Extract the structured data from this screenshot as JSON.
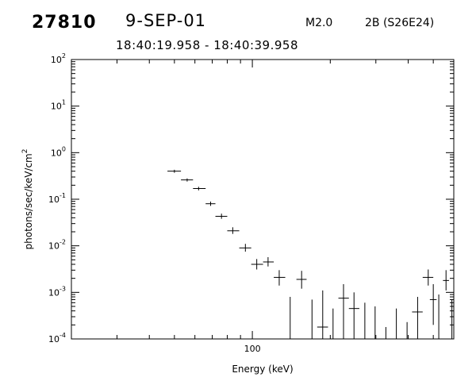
{
  "header": {
    "event_id": "27810",
    "date": "9-SEP-01",
    "goes_class": "M2.0",
    "flare_info": "2B (S26E24)",
    "time_range": "18:40:19.958 - 18:40:39.958"
  },
  "chart_data": {
    "type": "scatter",
    "title": "",
    "xlabel": "Energy (keV)",
    "ylabel": "photons/sec/keV/cm^2",
    "x_scale": "log",
    "y_scale": "log",
    "xlim": [
      20,
      600
    ],
    "ylim": [
      0.0001,
      100
    ],
    "x_tick_labels": [
      {
        "value": 100,
        "label": "100"
      }
    ],
    "y_tick_labels": [
      {
        "value": 0.0001,
        "mant": "10",
        "exp": "-4"
      },
      {
        "value": 0.001,
        "mant": "10",
        "exp": "-3"
      },
      {
        "value": 0.01,
        "mant": "10",
        "exp": "-2"
      },
      {
        "value": 0.1,
        "mant": "10",
        "exp": "-1"
      },
      {
        "value": 1,
        "mant": "10",
        "exp": "0"
      },
      {
        "value": 10,
        "mant": "10",
        "exp": "1"
      },
      {
        "value": 100,
        "mant": "10",
        "exp": "2"
      }
    ],
    "grid": false,
    "error_bars": true,
    "points": [
      {
        "x": 50,
        "xlo": 47,
        "xhi": 53,
        "y": 0.4,
        "ylo": 0.37,
        "yhi": 0.43
      },
      {
        "x": 56,
        "xlo": 53,
        "xhi": 59,
        "y": 0.26,
        "ylo": 0.24,
        "yhi": 0.28
      },
      {
        "x": 62,
        "xlo": 59,
        "xhi": 66,
        "y": 0.17,
        "ylo": 0.155,
        "yhi": 0.185
      },
      {
        "x": 69,
        "xlo": 66,
        "xhi": 72,
        "y": 0.08,
        "ylo": 0.072,
        "yhi": 0.089
      },
      {
        "x": 76,
        "xlo": 72,
        "xhi": 80,
        "y": 0.043,
        "ylo": 0.038,
        "yhi": 0.049
      },
      {
        "x": 84,
        "xlo": 80,
        "xhi": 89,
        "y": 0.021,
        "ylo": 0.018,
        "yhi": 0.025
      },
      {
        "x": 94,
        "xlo": 89,
        "xhi": 99,
        "y": 0.009,
        "ylo": 0.0075,
        "yhi": 0.011
      },
      {
        "x": 104,
        "xlo": 99,
        "xhi": 110,
        "y": 0.004,
        "ylo": 0.0031,
        "yhi": 0.0052
      },
      {
        "x": 115,
        "xlo": 110,
        "xhi": 121,
        "y": 0.0045,
        "ylo": 0.0036,
        "yhi": 0.0057
      },
      {
        "x": 127,
        "xlo": 121,
        "xhi": 134,
        "y": 0.0021,
        "ylo": 0.0014,
        "yhi": 0.003
      },
      {
        "x": 140,
        "xlo": 134,
        "xhi": 147,
        "y": null,
        "ylo": 0.0001,
        "yhi": 0.0008
      },
      {
        "x": 155,
        "xlo": 148,
        "xhi": 162,
        "y": 0.0019,
        "ylo": 0.0012,
        "yhi": 0.0029
      },
      {
        "x": 170,
        "xlo": 163,
        "xhi": 178,
        "y": null,
        "ylo": 0.0001,
        "yhi": 0.0007
      },
      {
        "x": 187,
        "xlo": 178,
        "xhi": 196,
        "y": 0.00018,
        "ylo": 0.0001,
        "yhi": 0.0011
      },
      {
        "x": 205,
        "xlo": 196,
        "xhi": 215,
        "y": null,
        "ylo": 0.0001,
        "yhi": 0.00045
      },
      {
        "x": 225,
        "xlo": 215,
        "xhi": 236,
        "y": 0.00075,
        "ylo": 0.0001,
        "yhi": 0.0015
      },
      {
        "x": 247,
        "xlo": 236,
        "xhi": 259,
        "y": 0.00045,
        "ylo": 0.0001,
        "yhi": 0.001
      },
      {
        "x": 272,
        "xlo": 259,
        "xhi": 285,
        "y": null,
        "ylo": 0.0001,
        "yhi": 0.0006
      },
      {
        "x": 298,
        "xlo": 285,
        "xhi": 312,
        "y": null,
        "ylo": 0.0001,
        "yhi": 0.0005
      },
      {
        "x": 328,
        "xlo": 312,
        "xhi": 343,
        "y": null,
        "ylo": 0.0001,
        "yhi": 0.00018
      },
      {
        "x": 360,
        "xlo": 343,
        "xhi": 377,
        "y": null,
        "ylo": 0.0001,
        "yhi": 0.00045
      },
      {
        "x": 396,
        "xlo": 377,
        "xhi": 414,
        "y": null,
        "ylo": 0.0001,
        "yhi": 0.00023
      },
      {
        "x": 435,
        "xlo": 414,
        "xhi": 455,
        "y": 0.00038,
        "ylo": 0.0001,
        "yhi": 0.0008
      },
      {
        "x": 478,
        "xlo": 455,
        "xhi": 500,
        "y": 0.0021,
        "ylo": 0.0014,
        "yhi": 0.0031
      },
      {
        "x": 500,
        "xlo": 485,
        "xhi": 515,
        "y": 0.0007,
        "ylo": 0.0002,
        "yhi": 0.0015
      },
      {
        "x": 525,
        "xlo": 510,
        "xhi": 540,
        "y": null,
        "ylo": 0.0001,
        "yhi": 0.0009
      },
      {
        "x": 560,
        "xlo": 545,
        "xhi": 575,
        "y": 0.0018,
        "ylo": 0.0011,
        "yhi": 0.003
      },
      {
        "x": 590,
        "xlo": 580,
        "xhi": 600,
        "y": null,
        "ylo": 0.0001,
        "yhi": 0.0007
      }
    ]
  }
}
